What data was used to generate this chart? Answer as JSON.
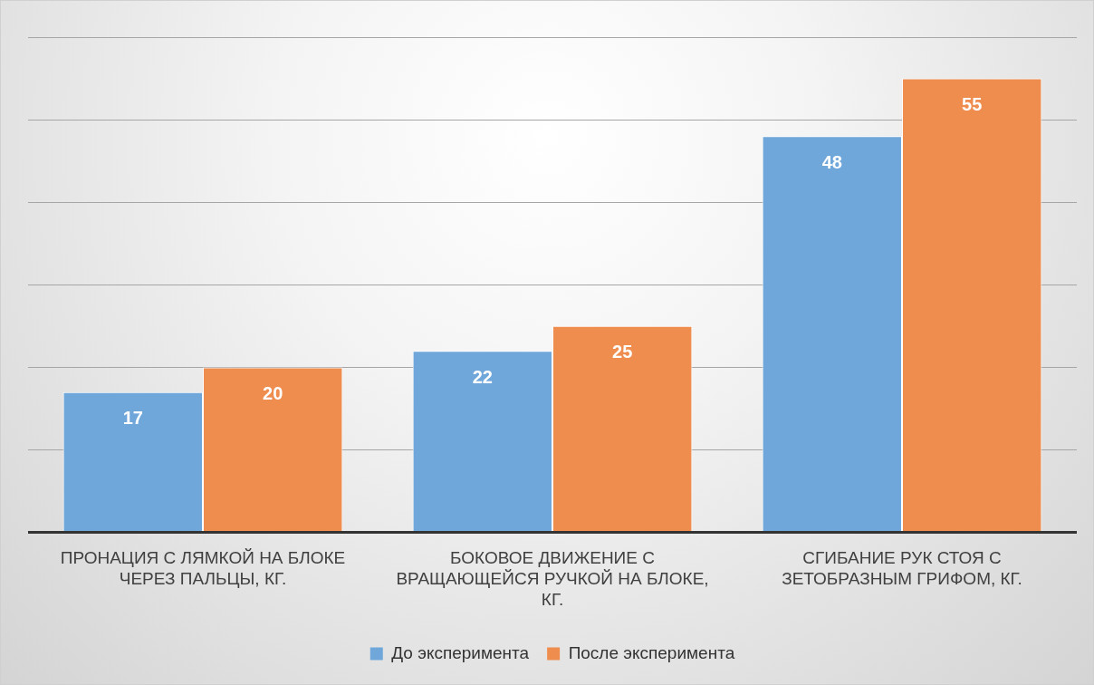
{
  "chart_data": {
    "type": "bar",
    "categories": [
      "ПРОНАЦИЯ С ЛЯМКОЙ НА БЛОКЕ ЧЕРЕЗ ПАЛЬЦЫ, КГ.",
      "БОКОВОЕ ДВИЖЕНИЕ С ВРАЩАЮЩЕЙСЯ РУЧКОЙ НА БЛОКЕ, КГ.",
      "СГИБАНИЕ РУК СТОЯ С ЗЕТОБРАЗНЫМ ГРИФОМ, КГ."
    ],
    "series": [
      {
        "name": "До эксперимента",
        "color": "#70a7da",
        "values": [
          17,
          22,
          48
        ]
      },
      {
        "name": "После эксперимента",
        "color": "#ef8d4f",
        "values": [
          20,
          25,
          55
        ]
      }
    ],
    "ylim": [
      0,
      60
    ],
    "yticks": [
      {
        "value": 0,
        "label": null
      },
      {
        "value": 10,
        "label": null
      },
      {
        "value": 20,
        "label": null
      },
      {
        "value": 30,
        "label": null
      },
      {
        "value": 40,
        "label": null
      },
      {
        "value": 50,
        "label": null
      },
      {
        "value": 60,
        "label": null
      }
    ],
    "tick_labels": "x",
    "grid": "y",
    "legend": "bottom",
    "data_labels": true
  }
}
